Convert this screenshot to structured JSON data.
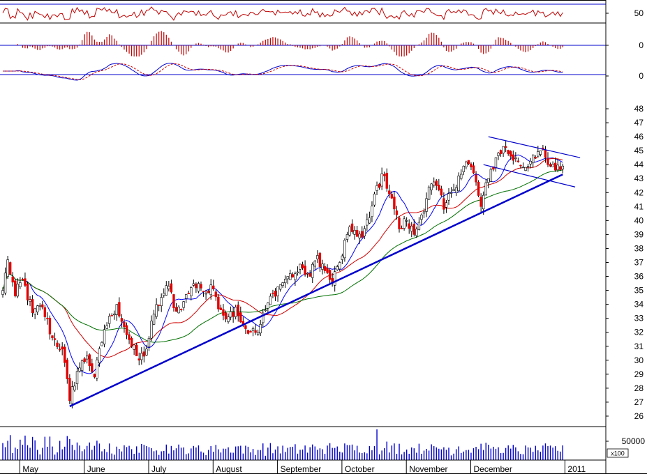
{
  "colors": {
    "background": "#ffffff",
    "frame": "#000000",
    "reference_line": "#0000cc",
    "up_candle": "#ffffff",
    "down_candle": "#e00000",
    "trendline": "#0000cc",
    "ma_fast": "#0000ff",
    "ma_mid": "#d00000",
    "ma_slow": "#007000",
    "rsi_line": "#c00000",
    "histogram": "#c00000",
    "macd": "#0000cc",
    "signal": "#d00000",
    "volume": "#0000cc"
  },
  "chart_data": {
    "type": "candlestick",
    "xlabels": [
      "May",
      "June",
      "July",
      "August",
      "September",
      "October",
      "November",
      "December",
      "2011"
    ],
    "price_axis": {
      "ticks": [
        26,
        27,
        28,
        29,
        30,
        31,
        32,
        33,
        34,
        35,
        36,
        37,
        38,
        39,
        40,
        41,
        42,
        43,
        44,
        45,
        46,
        47,
        48
      ],
      "ylim": [
        25.3,
        48.6
      ]
    },
    "rsi_panel": {
      "tick": "50",
      "ylim": [
        20,
        80
      ]
    },
    "histogram_panel": {
      "tick": "0"
    },
    "macd_panel": {
      "tick": "0"
    },
    "volume_panel": {
      "tick": "50000",
      "unit_label": "x100"
    },
    "anchors": [
      {
        "i": 0,
        "v": 35.0
      },
      {
        "i": 2,
        "v": 37.2
      },
      {
        "i": 5,
        "v": 34.6
      },
      {
        "i": 8,
        "v": 35.8
      },
      {
        "i": 12,
        "v": 33.4
      },
      {
        "i": 16,
        "v": 33.8
      },
      {
        "i": 20,
        "v": 31.6
      },
      {
        "i": 24,
        "v": 30.8
      },
      {
        "i": 27,
        "v": 27.1
      },
      {
        "i": 30,
        "v": 29.2
      },
      {
        "i": 34,
        "v": 30.3
      },
      {
        "i": 37,
        "v": 28.8
      },
      {
        "i": 41,
        "v": 32.2
      },
      {
        "i": 44,
        "v": 33.2
      },
      {
        "i": 46,
        "v": 34.0
      },
      {
        "i": 49,
        "v": 32.4
      },
      {
        "i": 52,
        "v": 31.0
      },
      {
        "i": 55,
        "v": 30.0
      },
      {
        "i": 58,
        "v": 30.8
      },
      {
        "i": 61,
        "v": 33.3
      },
      {
        "i": 64,
        "v": 34.5
      },
      {
        "i": 67,
        "v": 35.3
      },
      {
        "i": 70,
        "v": 33.5
      },
      {
        "i": 73,
        "v": 34.2
      },
      {
        "i": 76,
        "v": 35.2
      },
      {
        "i": 79,
        "v": 35.5
      },
      {
        "i": 82,
        "v": 34.8
      },
      {
        "i": 85,
        "v": 35.1
      },
      {
        "i": 88,
        "v": 33.6
      },
      {
        "i": 91,
        "v": 33.1
      },
      {
        "i": 94,
        "v": 33.8
      },
      {
        "i": 97,
        "v": 32.5
      },
      {
        "i": 100,
        "v": 32.0
      },
      {
        "i": 103,
        "v": 32.0
      },
      {
        "i": 106,
        "v": 33.6
      },
      {
        "i": 109,
        "v": 34.8
      },
      {
        "i": 112,
        "v": 35.4
      },
      {
        "i": 115,
        "v": 36.0
      },
      {
        "i": 118,
        "v": 36.2
      },
      {
        "i": 121,
        "v": 36.6
      },
      {
        "i": 124,
        "v": 36.0
      },
      {
        "i": 127,
        "v": 37.5
      },
      {
        "i": 130,
        "v": 36.4
      },
      {
        "i": 133,
        "v": 35.6
      },
      {
        "i": 136,
        "v": 37.0
      },
      {
        "i": 139,
        "v": 39.0
      },
      {
        "i": 142,
        "v": 39.3
      },
      {
        "i": 145,
        "v": 38.8
      },
      {
        "i": 148,
        "v": 40.2
      },
      {
        "i": 151,
        "v": 42.5
      },
      {
        "i": 154,
        "v": 43.2
      },
      {
        "i": 157,
        "v": 41.6
      },
      {
        "i": 160,
        "v": 39.4
      },
      {
        "i": 163,
        "v": 40.0
      },
      {
        "i": 166,
        "v": 39.0
      },
      {
        "i": 169,
        "v": 40.4
      },
      {
        "i": 172,
        "v": 42.4
      },
      {
        "i": 175,
        "v": 42.5
      },
      {
        "i": 178,
        "v": 40.8
      },
      {
        "i": 181,
        "v": 42.0
      },
      {
        "i": 184,
        "v": 43.2
      },
      {
        "i": 187,
        "v": 44.2
      },
      {
        "i": 190,
        "v": 43.4
      },
      {
        "i": 193,
        "v": 41.0
      },
      {
        "i": 196,
        "v": 43.0
      },
      {
        "i": 199,
        "v": 44.5
      },
      {
        "i": 202,
        "v": 45.3
      },
      {
        "i": 205,
        "v": 44.6
      },
      {
        "i": 208,
        "v": 44.2
      },
      {
        "i": 211,
        "v": 43.8
      },
      {
        "i": 214,
        "v": 44.7
      },
      {
        "i": 217,
        "v": 45.0
      },
      {
        "i": 220,
        "v": 44.0
      },
      {
        "i": 223,
        "v": 43.6
      },
      {
        "i": 226,
        "v": 43.9
      }
    ],
    "annotations": [
      {
        "type": "trendline",
        "points": [
          [
            27,
            26.7
          ],
          [
            226,
            43.3
          ]
        ]
      },
      {
        "type": "channel_top",
        "points": [
          [
            196,
            46.0
          ],
          [
            233,
            44.5
          ]
        ]
      },
      {
        "type": "channel_bottom",
        "points": [
          [
            194,
            44.0
          ],
          [
            231,
            42.4
          ]
        ]
      }
    ]
  }
}
